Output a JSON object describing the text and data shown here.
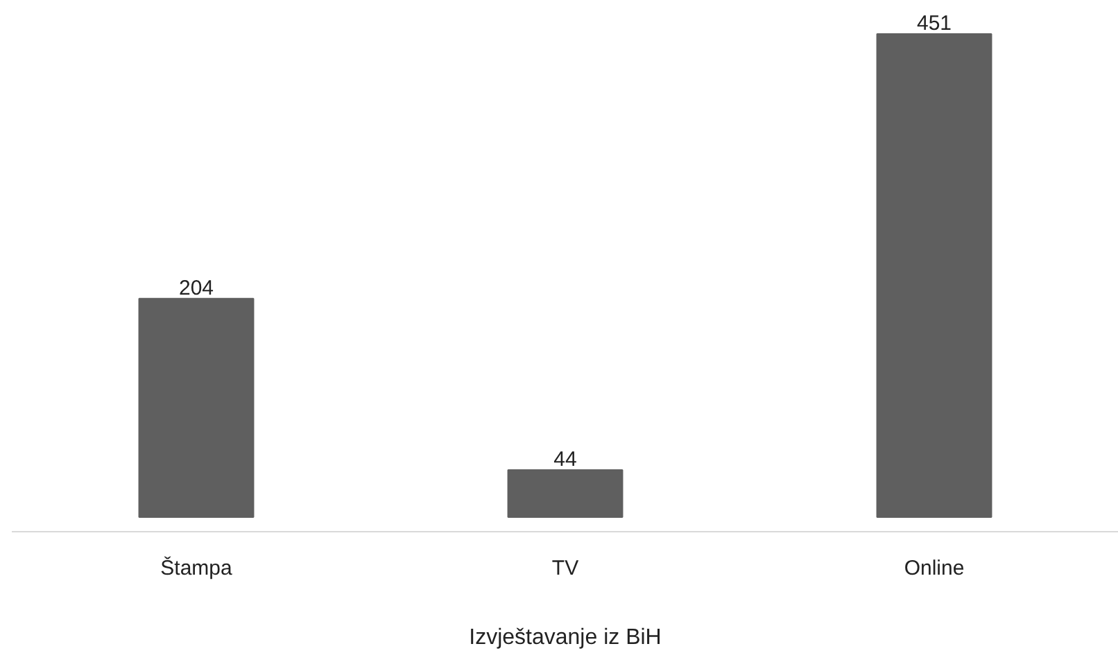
{
  "chart_data": {
    "type": "bar",
    "xlabel": "Izvještavanje iz BiH",
    "categories": [
      "Štampa",
      "TV",
      "Online"
    ],
    "values": [
      204,
      44,
      451
    ],
    "color": "#5f5f5f",
    "data_labels": true
  }
}
